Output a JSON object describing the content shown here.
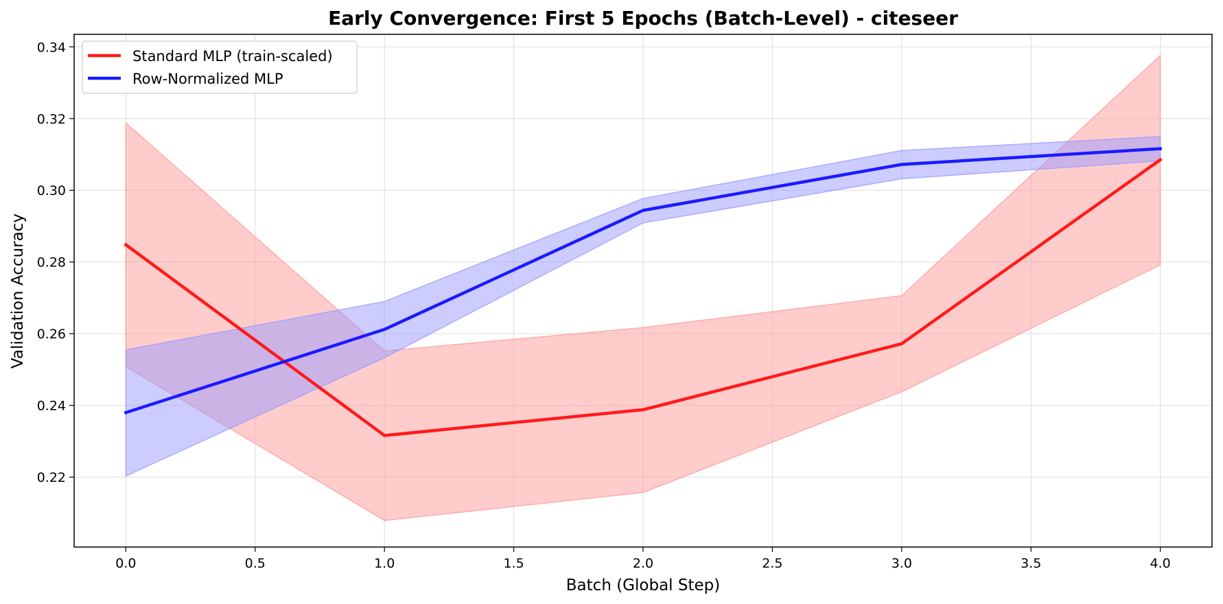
{
  "chart_data": {
    "type": "line",
    "title": "Early Convergence: First 5 Epochs (Batch-Level) - citeseer",
    "xlabel": "Batch (Global Step)",
    "ylabel": "Validation Accuracy",
    "xlim": [
      -0.2,
      4.2
    ],
    "ylim": [
      0.2005,
      0.3435
    ],
    "xticks": [
      0.0,
      0.5,
      1.0,
      1.5,
      2.0,
      2.5,
      3.0,
      3.5,
      4.0
    ],
    "xtick_labels": [
      "0.0",
      "0.5",
      "1.0",
      "1.5",
      "2.0",
      "2.5",
      "3.0",
      "3.5",
      "4.0"
    ],
    "yticks": [
      0.22,
      0.24,
      0.26,
      0.28,
      0.3,
      0.32,
      0.34
    ],
    "ytick_labels": [
      "0.22",
      "0.24",
      "0.26",
      "0.28",
      "0.30",
      "0.32",
      "0.34"
    ],
    "grid": true,
    "legend_position": "upper-left",
    "x": [
      0,
      1,
      2,
      3,
      4
    ],
    "series": [
      {
        "name": "Standard MLP (train-scaled)",
        "color": "#ff1a1a",
        "band_color": "#ff9999",
        "values": [
          0.2848,
          0.2316,
          0.2388,
          0.2572,
          0.3085
        ],
        "upper": [
          0.3188,
          0.2552,
          0.2617,
          0.2706,
          0.3376
        ],
        "lower": [
          0.2508,
          0.2079,
          0.2157,
          0.2438,
          0.2792
        ]
      },
      {
        "name": "Row-Normalized MLP",
        "color": "#1a1aff",
        "band_color": "#9999ff",
        "values": [
          0.238,
          0.2612,
          0.2944,
          0.3072,
          0.3116
        ],
        "upper": [
          0.2555,
          0.269,
          0.2977,
          0.3111,
          0.315
        ],
        "lower": [
          0.2203,
          0.2533,
          0.2909,
          0.3032,
          0.3082
        ]
      }
    ]
  }
}
